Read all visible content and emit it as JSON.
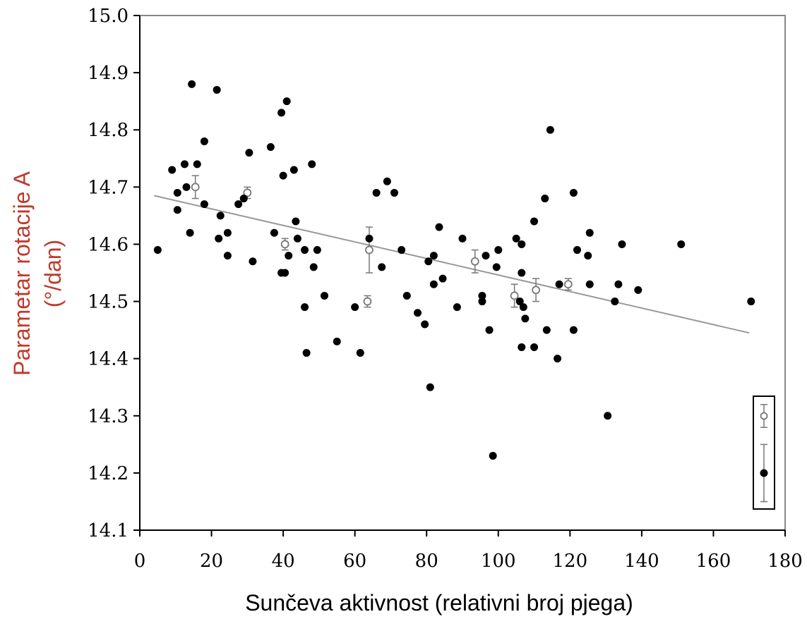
{
  "chart_data": {
    "type": "scatter",
    "title": "",
    "xlabel": "Sunčeva aktivnost (relativni broj pjega)",
    "ylabel_line1": "Parametar rotacije A",
    "ylabel_line2": "(°/dan)",
    "xlim": [
      0,
      180
    ],
    "ylim": [
      14.1,
      15.0
    ],
    "x_ticks": [
      0,
      20,
      40,
      60,
      80,
      100,
      120,
      140,
      160,
      180
    ],
    "y_ticks": [
      "14.1",
      "14.2",
      "14.3",
      "14.4",
      "14.5",
      "14.6",
      "14.7",
      "14.8",
      "14.9",
      "15.0"
    ],
    "grid": false,
    "colors": {
      "axis": "#000000",
      "frame": "#888888",
      "trend": "#999999",
      "filled": "#000000",
      "open": "#777777",
      "ylabel": "#c0392b"
    },
    "series": [
      {
        "marker": "filled",
        "points": [
          [
            5,
            14.59
          ],
          [
            9,
            14.73
          ],
          [
            10.5,
            14.69
          ],
          [
            10.5,
            14.66
          ],
          [
            12.5,
            14.74
          ],
          [
            13,
            14.7
          ],
          [
            14,
            14.62
          ],
          [
            14.5,
            14.88
          ],
          [
            16,
            14.74
          ],
          [
            18,
            14.67
          ],
          [
            18,
            14.78
          ],
          [
            21.5,
            14.87
          ],
          [
            22,
            14.61
          ],
          [
            22.5,
            14.65
          ],
          [
            24.5,
            14.62
          ],
          [
            24.5,
            14.58
          ],
          [
            27.5,
            14.67
          ],
          [
            29,
            14.68
          ],
          [
            30.5,
            14.76
          ],
          [
            31.5,
            14.57
          ],
          [
            36.5,
            14.77
          ],
          [
            37.5,
            14.62
          ],
          [
            39.5,
            14.83
          ],
          [
            39.5,
            14.55
          ],
          [
            40,
            14.72
          ],
          [
            40.5,
            14.55
          ],
          [
            41,
            14.85
          ],
          [
            41.5,
            14.58
          ],
          [
            43,
            14.73
          ],
          [
            43.5,
            14.64
          ],
          [
            44,
            14.61
          ],
          [
            46,
            14.59
          ],
          [
            46,
            14.49
          ],
          [
            46.5,
            14.41
          ],
          [
            48,
            14.74
          ],
          [
            48.5,
            14.56
          ],
          [
            49.5,
            14.59
          ],
          [
            51.5,
            14.51
          ],
          [
            55,
            14.43
          ],
          [
            60,
            14.49
          ],
          [
            61.5,
            14.41
          ],
          [
            64,
            14.61
          ],
          [
            66,
            14.69
          ],
          [
            67.5,
            14.56
          ],
          [
            69,
            14.71
          ],
          [
            71,
            14.69
          ],
          [
            73,
            14.59
          ],
          [
            74.5,
            14.51
          ],
          [
            77.5,
            14.48
          ],
          [
            79.5,
            14.46
          ],
          [
            80.5,
            14.57
          ],
          [
            81,
            14.35
          ],
          [
            82,
            14.53
          ],
          [
            82,
            14.58
          ],
          [
            83.5,
            14.63
          ],
          [
            84.5,
            14.54
          ],
          [
            88.5,
            14.49
          ],
          [
            90,
            14.61
          ],
          [
            95.5,
            14.51
          ],
          [
            95.5,
            14.5
          ],
          [
            96.5,
            14.58
          ],
          [
            97.5,
            14.45
          ],
          [
            98.5,
            14.23
          ],
          [
            99.5,
            14.56
          ],
          [
            100,
            14.59
          ],
          [
            105,
            14.61
          ],
          [
            106,
            14.5
          ],
          [
            106.5,
            14.42
          ],
          [
            106.5,
            14.6
          ],
          [
            106.5,
            14.55
          ],
          [
            107,
            14.49
          ],
          [
            107.5,
            14.47
          ],
          [
            110,
            14.42
          ],
          [
            110,
            14.64
          ],
          [
            113,
            14.68
          ],
          [
            113.5,
            14.45
          ],
          [
            114.5,
            14.8
          ],
          [
            116.5,
            14.4
          ],
          [
            117,
            14.53
          ],
          [
            121,
            14.69
          ],
          [
            121,
            14.45
          ],
          [
            122,
            14.59
          ],
          [
            125,
            14.58
          ],
          [
            125.5,
            14.62
          ],
          [
            125.5,
            14.53
          ],
          [
            130.5,
            14.3
          ],
          [
            132.5,
            14.5
          ],
          [
            133.5,
            14.53
          ],
          [
            134.5,
            14.6
          ],
          [
            139,
            14.52
          ],
          [
            151,
            14.6
          ],
          [
            170.5,
            14.5
          ]
        ]
      },
      {
        "marker": "open",
        "points": [
          {
            "x": 15.5,
            "y": 14.7,
            "err": 0.02
          },
          {
            "x": 30,
            "y": 14.69,
            "err": 0.01
          },
          {
            "x": 40.5,
            "y": 14.6,
            "err": 0.01
          },
          {
            "x": 63.5,
            "y": 14.5,
            "err": 0.01
          },
          {
            "x": 64,
            "y": 14.59,
            "err": 0.04
          },
          {
            "x": 93.5,
            "y": 14.57,
            "err": 0.02
          },
          {
            "x": 104.5,
            "y": 14.51,
            "err": 0.02
          },
          {
            "x": 110.5,
            "y": 14.52,
            "err": 0.02
          },
          {
            "x": 119.5,
            "y": 14.53,
            "err": 0.01
          }
        ]
      }
    ],
    "trend_line": [
      [
        4,
        14.685
      ],
      [
        170,
        14.445
      ]
    ],
    "legend": {
      "placement": "bottom-right",
      "open_err": 0.02,
      "filled_err": 0.05
    }
  }
}
